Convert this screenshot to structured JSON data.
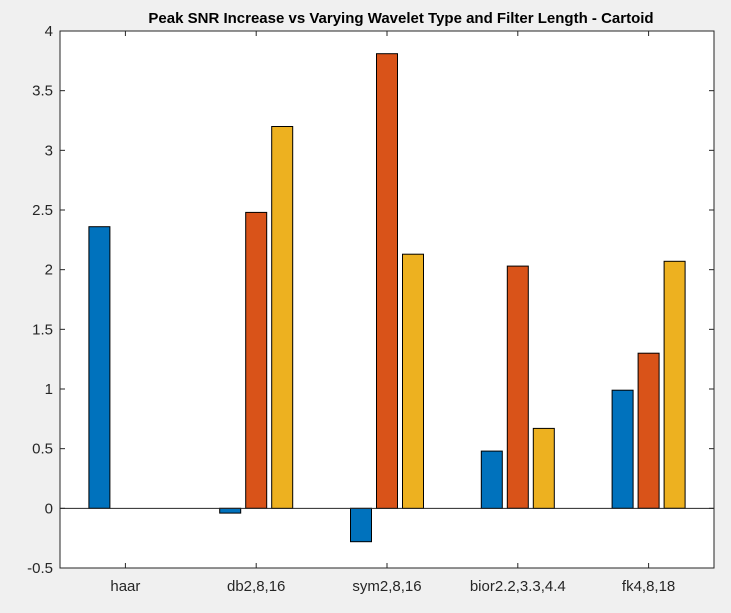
{
  "chart_data": {
    "type": "bar",
    "title": "Peak SNR Increase vs Varying Wavelet Type and Filter Length - Cartoid",
    "xlabel": "",
    "ylabel": "",
    "categories": [
      "haar",
      "db2,8,16",
      "sym2,8,16",
      "bior2.2,3.3,4.4",
      "fk4,8,18"
    ],
    "ylim": [
      -0.5,
      4
    ],
    "yticks": [
      -0.5,
      0,
      0.5,
      1,
      1.5,
      2,
      2.5,
      3,
      3.5,
      4
    ],
    "ytick_labels": [
      "-0.5",
      "0",
      "0.5",
      "1",
      "1.5",
      "2",
      "2.5",
      "3",
      "3.5",
      "4"
    ],
    "grid": false,
    "legend": "none",
    "series": [
      {
        "values": [
          2.36,
          -0.04,
          -0.28,
          0.48,
          0.99
        ],
        "color": "#0072BD"
      },
      {
        "values": [
          0,
          2.48,
          3.81,
          2.03,
          1.3
        ],
        "color": "#D95319"
      },
      {
        "values": [
          0,
          3.2,
          2.13,
          0.67,
          2.07
        ],
        "color": "#EDB120"
      }
    ]
  }
}
